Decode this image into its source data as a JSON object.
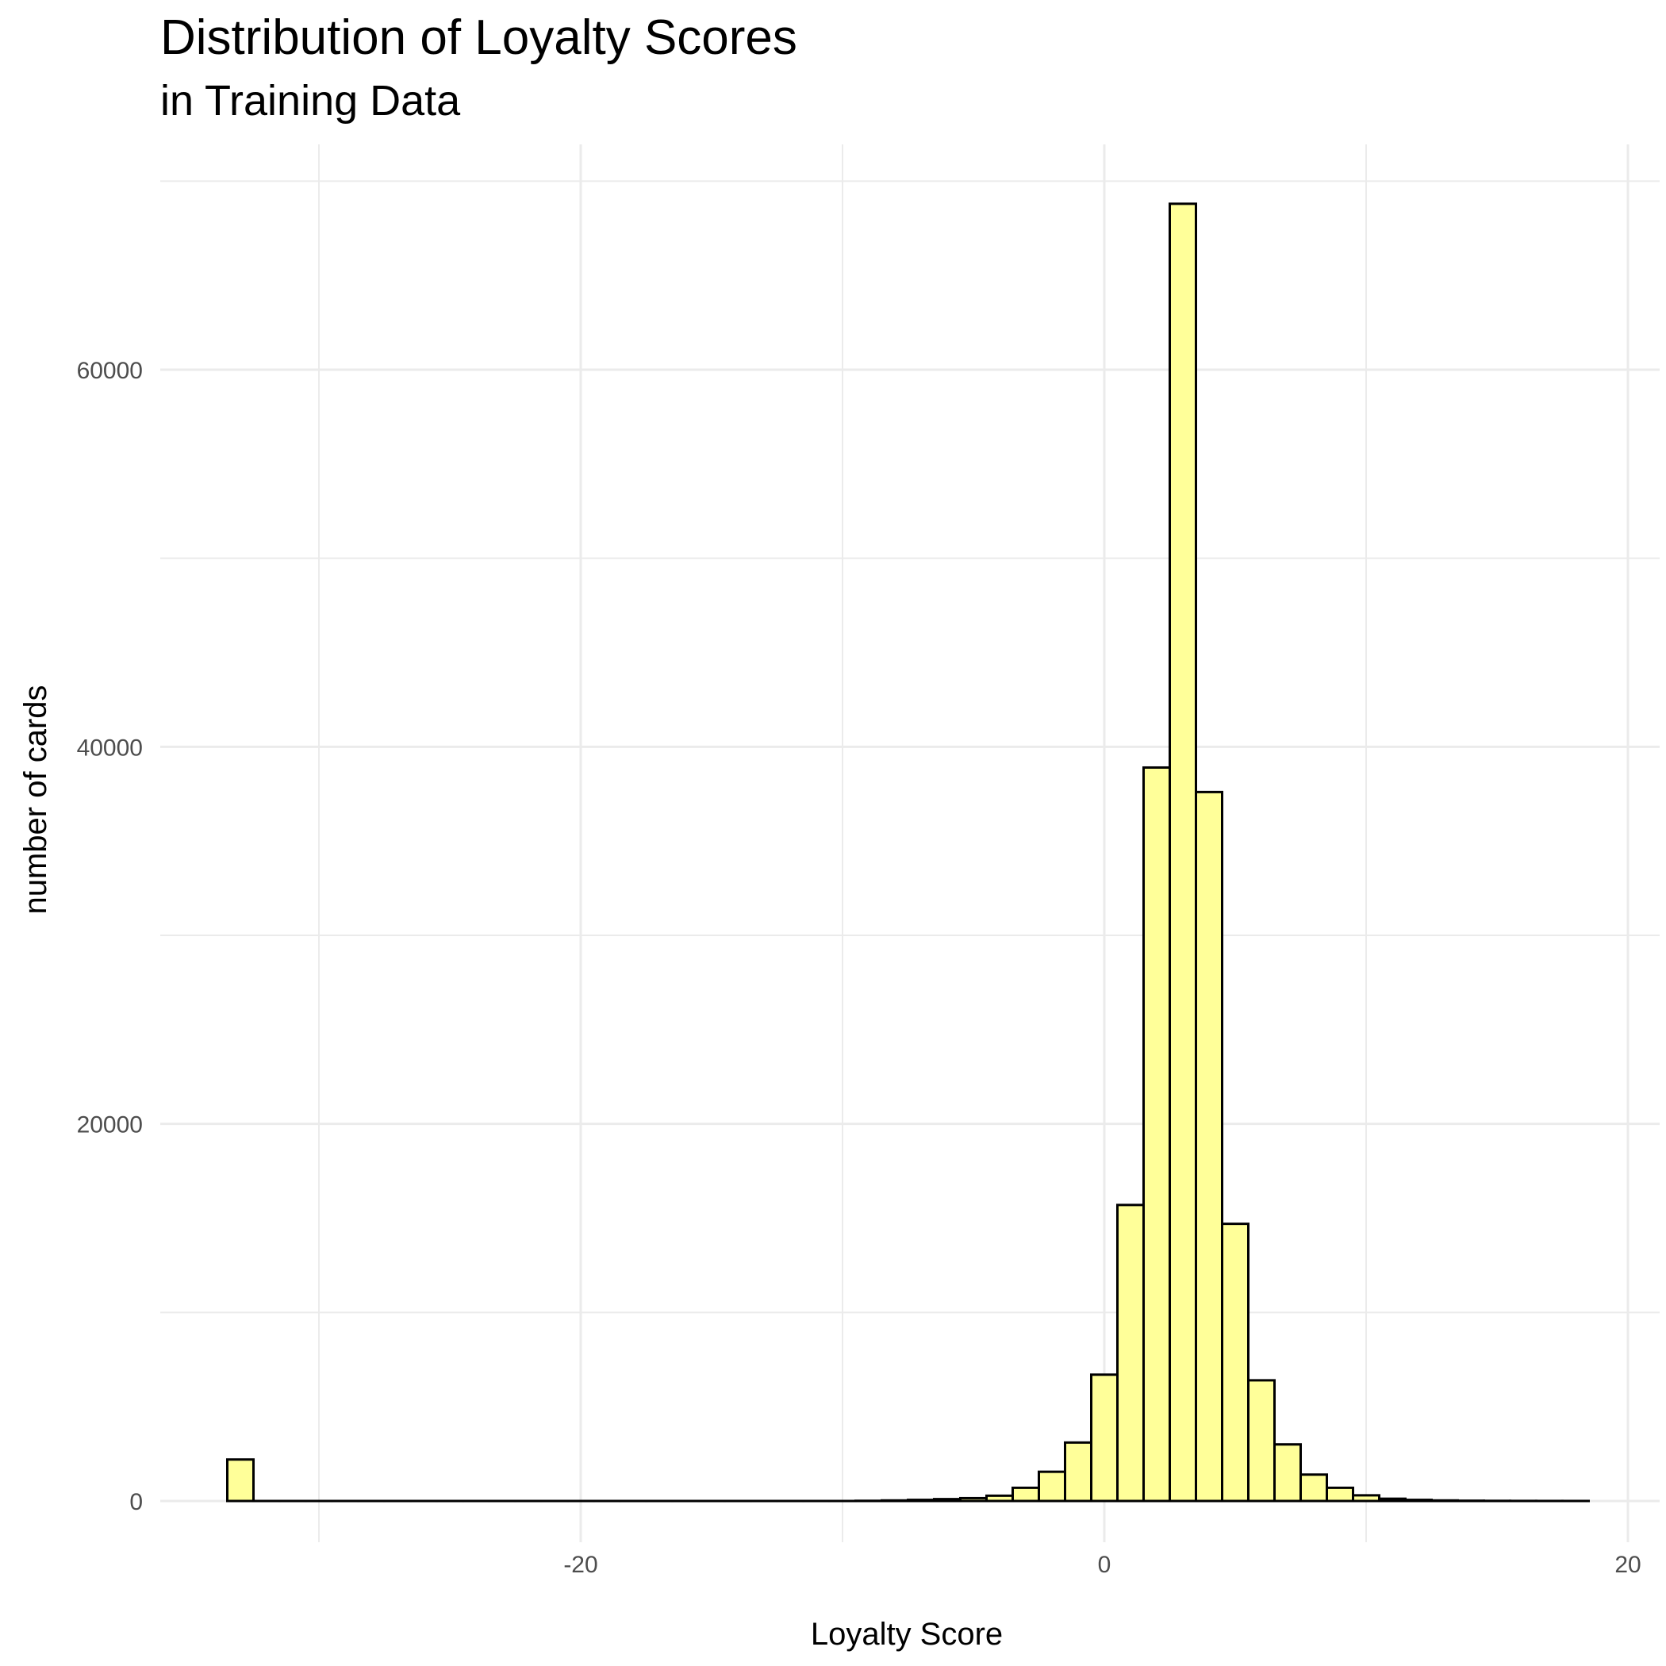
{
  "chart_data": {
    "type": "bar",
    "title": "Distribution of Loyalty Scores",
    "subtitle": "in Training Data",
    "xlabel": "Loyalty Score",
    "ylabel": "number of cards",
    "xlim": [
      -36,
      21
    ],
    "ylim": [
      -4000,
      70000
    ],
    "x_ticks": [
      -20,
      0,
      20
    ],
    "x_tick_labels": [
      "-20",
      "0",
      "20"
    ],
    "y_ticks": [
      0,
      20000,
      40000,
      60000
    ],
    "y_tick_labels": [
      "0",
      "20000",
      "40000",
      "60000"
    ],
    "grid": true,
    "bin_width": 1,
    "bin_centers": [
      -33,
      -32,
      -31,
      -30,
      -29,
      -28,
      -27,
      -26,
      -25,
      -24,
      -23,
      -22,
      -21,
      -20,
      -19,
      -18,
      -17,
      -16,
      -15,
      -14,
      -13,
      -12,
      -11,
      -10,
      -9,
      -8,
      -7,
      -6,
      -5,
      -4,
      -3,
      -2,
      -1,
      0,
      1,
      2,
      3,
      4,
      5,
      6,
      7,
      8,
      9,
      10,
      11,
      12,
      13,
      14,
      15,
      16,
      17,
      18
    ],
    "values": [
      2200,
      0,
      0,
      0,
      0,
      0,
      0,
      0,
      0,
      0,
      0,
      0,
      0,
      0,
      0,
      0,
      0,
      0,
      0,
      0,
      0,
      0,
      0,
      0,
      10,
      30,
      60,
      100,
      150,
      280,
      700,
      1550,
      3100,
      6700,
      15700,
      38900,
      68800,
      37600,
      14700,
      6400,
      3000,
      1400,
      700,
      300,
      120,
      60,
      30,
      15,
      8,
      5,
      3,
      2
    ],
    "colors": {
      "bar_fill": "#ffff99",
      "bar_stroke": "#000000",
      "grid": "#ebebeb"
    }
  }
}
